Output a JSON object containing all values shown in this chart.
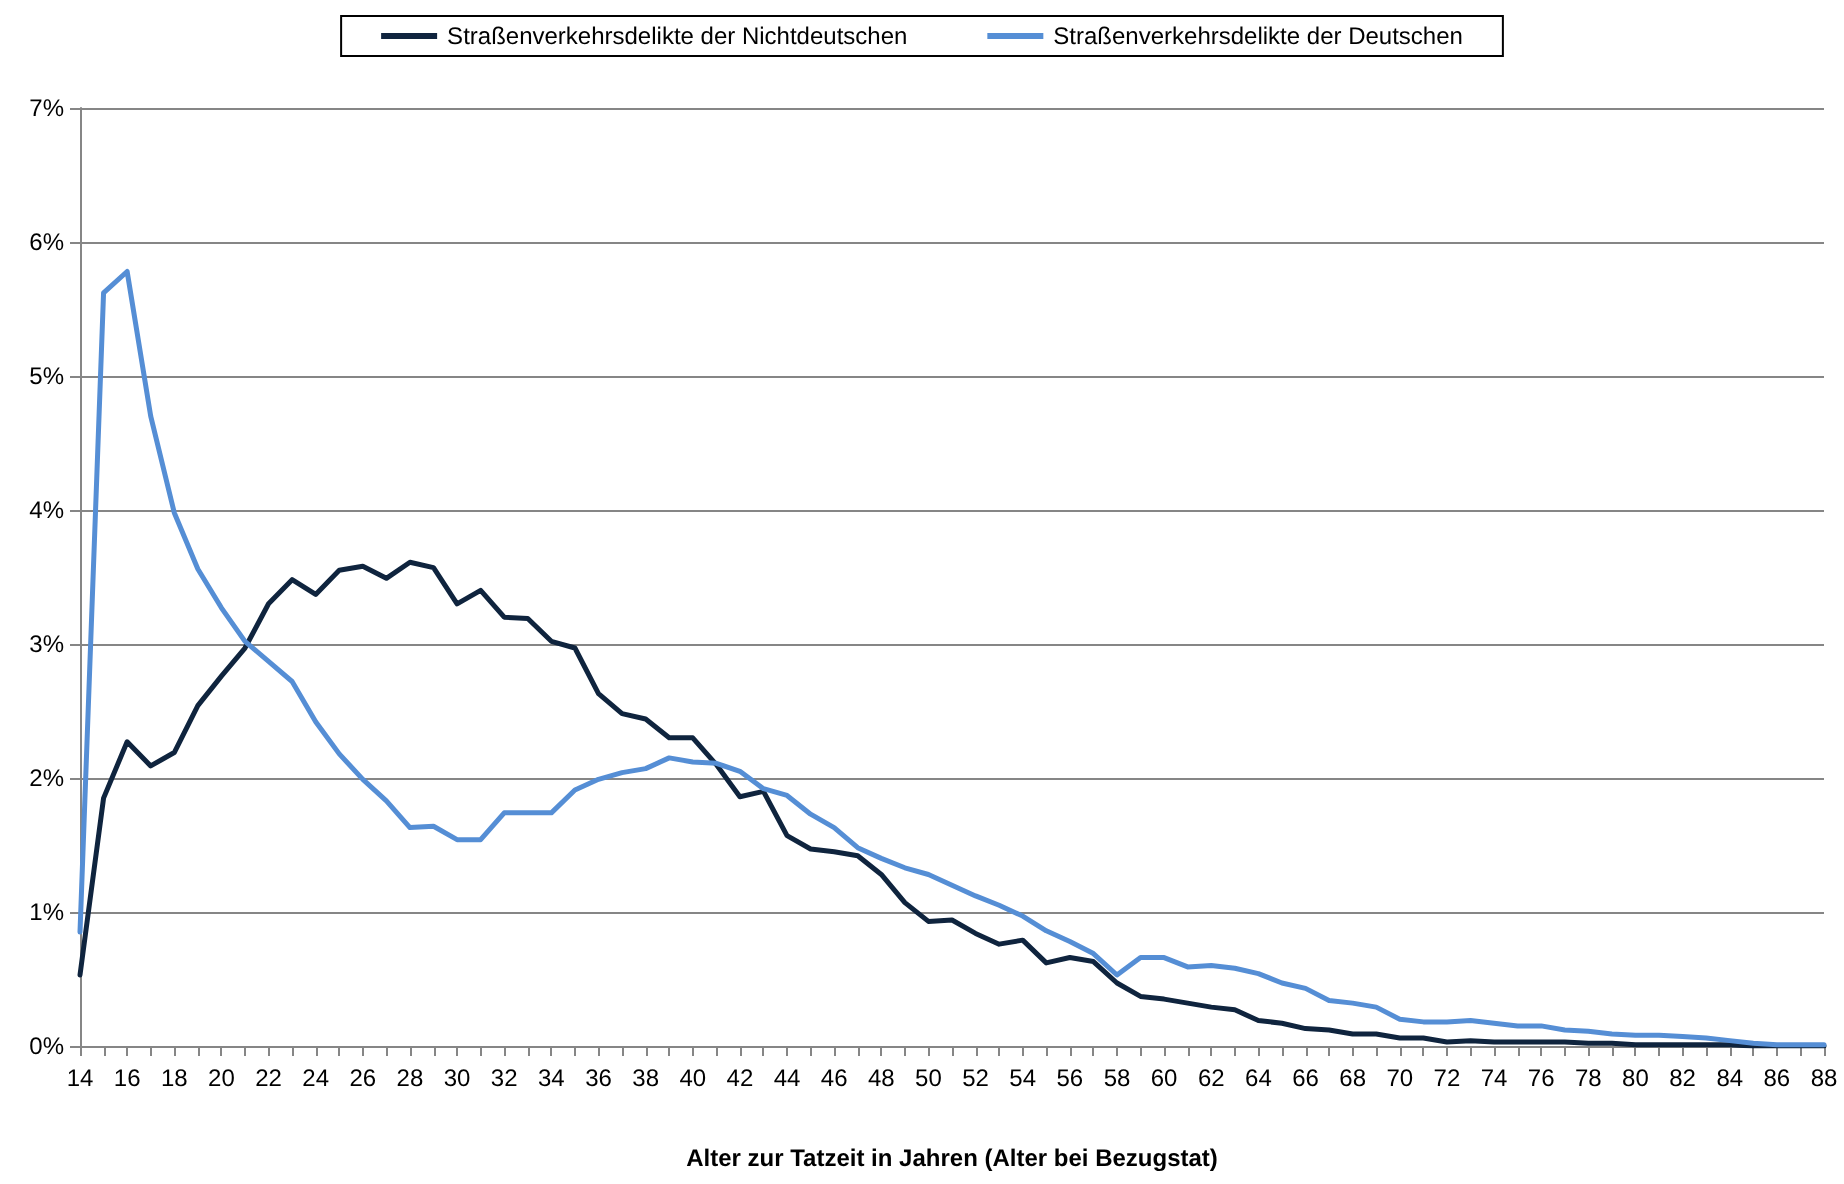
{
  "chart_data": {
    "type": "line",
    "xlabel": "Alter zur Tatzeit in Jahren (Alter bei Bezugstat)",
    "categories": [
      "14",
      null,
      "16",
      null,
      "18",
      null,
      "20",
      null,
      "22",
      null,
      "24",
      null,
      "26",
      null,
      "28",
      null,
      "30",
      null,
      "32",
      null,
      "34",
      null,
      "36",
      null,
      "38",
      null,
      "40",
      null,
      "42",
      null,
      "44",
      null,
      "46",
      null,
      "48",
      null,
      "50",
      null,
      "52",
      null,
      "54",
      null,
      "56",
      null,
      "58",
      null,
      "60",
      null,
      "62",
      null,
      "64",
      null,
      "66",
      null,
      "68",
      null,
      "70",
      null,
      "72",
      null,
      "74",
      null,
      "76",
      null,
      "78",
      null,
      "80",
      null,
      "82",
      null,
      "84",
      null,
      "86",
      null,
      "88"
    ],
    "series": [
      {
        "name": "Straßenverkehrsdelikte der Nichtdeutschen",
        "color": "#0f243e",
        "values": [
          0.53,
          1.85,
          2.27,
          2.09,
          2.19,
          2.54,
          2.76,
          2.97,
          3.3,
          3.48,
          3.37,
          3.55,
          3.58,
          3.49,
          3.61,
          3.57,
          3.3,
          3.4,
          3.2,
          3.19,
          3.02,
          2.97,
          2.63,
          2.48,
          2.44,
          2.3,
          2.3,
          2.1,
          1.86,
          1.9,
          1.57,
          1.47,
          1.45,
          1.42,
          1.28,
          1.07,
          0.93,
          0.94,
          0.84,
          0.76,
          0.79,
          0.62,
          0.66,
          0.63,
          0.47,
          0.37,
          0.35,
          0.32,
          0.29,
          0.27,
          0.19,
          0.17,
          0.13,
          0.12,
          0.09,
          0.09,
          0.06,
          0.06,
          0.03,
          0.04,
          0.03,
          0.03,
          0.03,
          0.03,
          0.02,
          0.02,
          0.01,
          0.01,
          0.01,
          0.01,
          0.01,
          0,
          0,
          0,
          0
        ]
      },
      {
        "name": "Straßenverkehrsdelikte der Deutschen",
        "color": "#558ed5",
        "values": [
          0.85,
          5.62,
          5.78,
          4.7,
          3.98,
          3.56,
          3.27,
          3.02,
          2.87,
          2.72,
          2.42,
          2.18,
          1.99,
          1.83,
          1.63,
          1.64,
          1.54,
          1.54,
          1.74,
          1.74,
          1.74,
          1.91,
          1.99,
          2.04,
          2.07,
          2.15,
          2.12,
          2.11,
          2.05,
          1.92,
          1.87,
          1.73,
          1.63,
          1.48,
          1.4,
          1.33,
          1.28,
          1.2,
          1.12,
          1.05,
          0.97,
          0.86,
          0.78,
          0.69,
          0.53,
          0.66,
          0.66,
          0.59,
          0.6,
          0.58,
          0.54,
          0.47,
          0.43,
          0.34,
          0.32,
          0.29,
          0.2,
          0.18,
          0.18,
          0.19,
          0.17,
          0.15,
          0.15,
          0.12,
          0.11,
          0.09,
          0.08,
          0.08,
          0.07,
          0.06,
          0.04,
          0.02,
          0.01,
          0.01,
          0.01
        ]
      }
    ],
    "ylim": [
      0,
      7
    ],
    "yticks": [
      {
        "value": 0,
        "label": "0%"
      },
      {
        "value": 1,
        "label": "1%"
      },
      {
        "value": 2,
        "label": "2%"
      },
      {
        "value": 3,
        "label": "3%"
      },
      {
        "value": 4,
        "label": "4%"
      },
      {
        "value": 5,
        "label": "5%"
      },
      {
        "value": 6,
        "label": "6%"
      },
      {
        "value": 7,
        "label": "7%"
      }
    ],
    "grid": "y",
    "legend": "top",
    "marker": "none",
    "line_style": "solid"
  }
}
